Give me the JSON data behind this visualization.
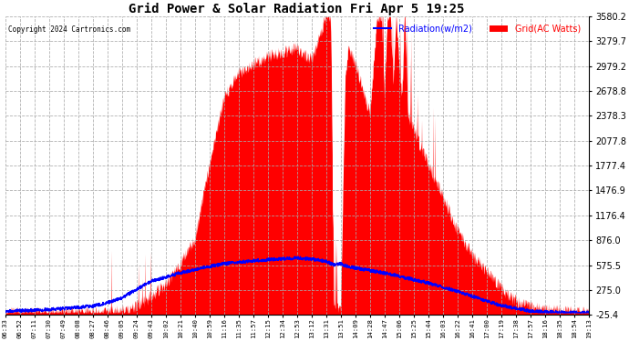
{
  "title": "Grid Power & Solar Radiation Fri Apr 5 19:25",
  "copyright": "Copyright 2024 Cartronics.com",
  "legend_radiation": "Radiation(w/m2)",
  "legend_grid": "Grid(AC Watts)",
  "ylabel_right_ticks": [
    -25.4,
    275.0,
    575.5,
    876.0,
    1176.4,
    1476.9,
    1777.4,
    2077.8,
    2378.3,
    2678.8,
    2979.2,
    3279.7,
    3580.2
  ],
  "ymin": -25.4,
  "ymax": 3580.2,
  "xtick_labels": [
    "06:33",
    "06:52",
    "07:11",
    "07:30",
    "07:49",
    "08:08",
    "08:27",
    "08:46",
    "09:05",
    "09:24",
    "09:43",
    "10:02",
    "10:21",
    "10:40",
    "10:59",
    "11:16",
    "11:35",
    "11:57",
    "12:15",
    "12:34",
    "12:53",
    "13:12",
    "13:31",
    "13:51",
    "14:09",
    "14:28",
    "14:47",
    "15:06",
    "15:25",
    "15:44",
    "16:03",
    "16:22",
    "16:41",
    "17:00",
    "17:19",
    "17:38",
    "17:57",
    "18:16",
    "18:35",
    "18:54",
    "19:13"
  ],
  "background_color": "#ffffff",
  "grid_color": "#aaaaaa",
  "fill_color": "#ff0000",
  "line_color": "#0000ff",
  "title_color": "#000000",
  "copyright_color": "#000000",
  "legend_radiation_color": "#0000ff",
  "legend_grid_color": "#ff0000"
}
